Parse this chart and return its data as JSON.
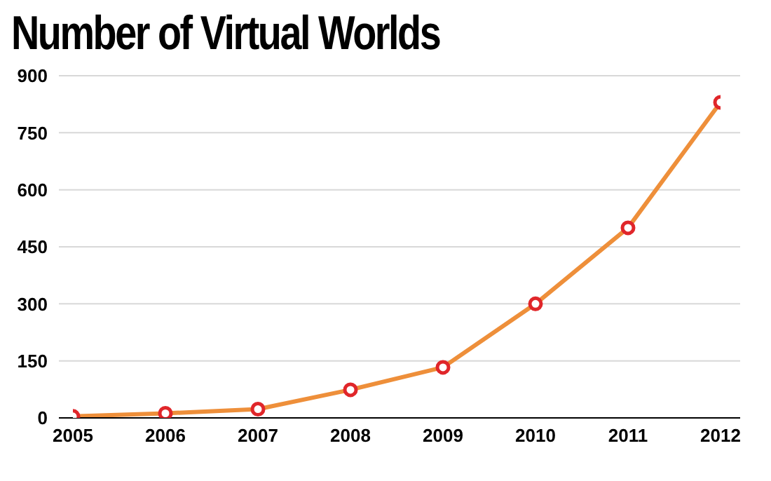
{
  "chart_data": {
    "type": "line",
    "title": "Number of Virtual Worlds",
    "categories": [
      "2005",
      "2006",
      "2007",
      "2008",
      "2009",
      "2010",
      "2011",
      "2012"
    ],
    "series": [
      {
        "color": "#ee8f3a",
        "values": [
          4,
          12,
          23,
          74,
          133,
          300,
          500,
          830
        ]
      }
    ],
    "ylim": [
      0,
      900
    ],
    "yticks": [
      0,
      150,
      300,
      450,
      600,
      750,
      900
    ],
    "grid": "y",
    "marker": "circle",
    "line_style": "solid"
  }
}
